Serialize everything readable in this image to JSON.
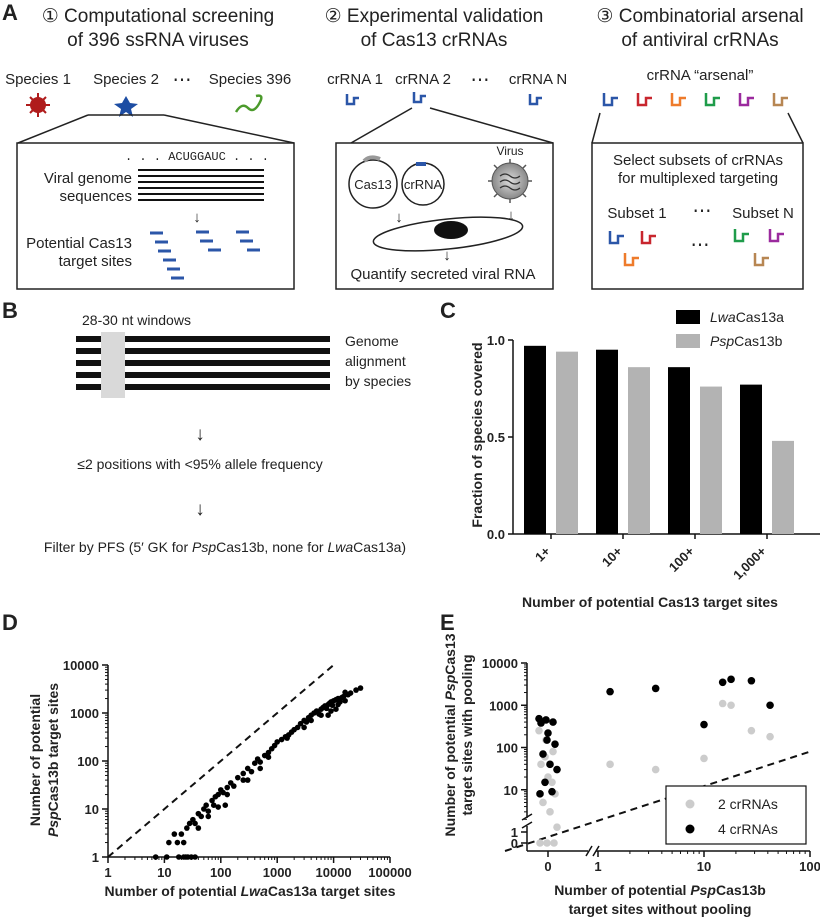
{
  "panel_labels": {
    "a": "A",
    "b": "B",
    "c": "C",
    "d": "D",
    "e": "E"
  },
  "panel_a": {
    "step1": {
      "line1": "① Computational screening",
      "line2": "of 396 ssRNA viruses",
      "species": [
        "Species 1",
        "Species 2",
        "Species 396"
      ],
      "ellipsis": "⋯",
      "seq": ". . . ACUGGAUC . . .",
      "genome_line1": "Viral genome",
      "genome_line2": "sequences",
      "target_line1": "Potential Cas13",
      "target_line2": "target sites",
      "arrow": "↓"
    },
    "step2": {
      "line1": "② Experimental validation",
      "line2": "of Cas13 crRNAs",
      "crrnas": [
        "crRNA 1",
        "crRNA 2",
        "crRNA N"
      ],
      "ellipsis": "⋯",
      "cas13": "Cas13",
      "crrna": "crRNA",
      "virus": "Virus",
      "quantify": "Quantify secreted viral RNA",
      "arrow": "↓"
    },
    "step3": {
      "line1": "③ Combinatorial arsenal",
      "line2": "of antiviral crRNAs",
      "arsenal": "crRNA “arsenal”",
      "select_line1": "Select subsets of crRNAs",
      "select_line2": "for multiplexed targeting",
      "subset1": "Subset 1",
      "subsetN": "Subset N",
      "ellipsis": "⋯",
      "colors": [
        "#2b56a8",
        "#c8262e",
        "#ee7b2b",
        "#1f9c4a",
        "#9b2a9e",
        "#b78652"
      ]
    }
  },
  "panel_b": {
    "windows": "28-30 nt windows",
    "genome_line1": "Genome",
    "genome_line2": "alignment",
    "genome_line3": "by species",
    "criterion": "≤2 positions with <95% allele frequency",
    "filter_a": "Filter by PFS (5′ GK for ",
    "filter_b": "Psp",
    "filter_c": "Cas13b, none for ",
    "filter_d": "Lwa",
    "filter_e": "Cas13a)",
    "arrow": "↓"
  },
  "chart_data": [
    {
      "id": "C",
      "type": "bar",
      "categories": [
        "1+",
        "10+",
        "100+",
        "1,000+"
      ],
      "series": [
        {
          "name": "LwaCas13a",
          "italic": "Lwa",
          "rest": "Cas13a",
          "color": "#000000",
          "values": [
            0.97,
            0.95,
            0.86,
            0.77
          ]
        },
        {
          "name": "PspCas13b",
          "italic": "Psp",
          "rest": "Cas13b",
          "color": "#b3b3b3",
          "values": [
            0.94,
            0.86,
            0.76,
            0.48
          ]
        }
      ],
      "ylim": [
        0,
        1.0
      ],
      "yticks": [
        "0.0",
        "0.5",
        "1.0"
      ],
      "ylabel": "Fraction of species covered",
      "xlabel": "Number of potential Cas13 target sites",
      "legend": "top-right"
    },
    {
      "id": "D",
      "type": "scatter",
      "xscale": "log",
      "yscale": "log",
      "xlim": [
        1,
        100000
      ],
      "ylim": [
        1,
        10000
      ],
      "xticks": [
        "1",
        "10",
        "100",
        "1000",
        "10000",
        "100000"
      ],
      "yticks": [
        "1",
        "10",
        "100",
        "1000",
        "10000"
      ],
      "ylabel_line1": "Number of potential",
      "ylabel_line2a": "Psp",
      "ylabel_line2b": "Cas13b target sites",
      "xlabel_a": "Number of potential ",
      "xlabel_b": "Lwa",
      "xlabel_c": "Cas13a target sites",
      "diagonal": "y = x",
      "points": [
        [
          11,
          1
        ],
        [
          18,
          1
        ],
        [
          22,
          1
        ],
        [
          24,
          1
        ],
        [
          26,
          1
        ],
        [
          30,
          1
        ],
        [
          35,
          1
        ],
        [
          7,
          1
        ],
        [
          12,
          2
        ],
        [
          15,
          3
        ],
        [
          17,
          2
        ],
        [
          20,
          3
        ],
        [
          25,
          4
        ],
        [
          28,
          5
        ],
        [
          32,
          6
        ],
        [
          35,
          5
        ],
        [
          40,
          8
        ],
        [
          45,
          7
        ],
        [
          50,
          10
        ],
        [
          55,
          12
        ],
        [
          60,
          9
        ],
        [
          70,
          15
        ],
        [
          80,
          18
        ],
        [
          90,
          20
        ],
        [
          100,
          25
        ],
        [
          110,
          22
        ],
        [
          130,
          28
        ],
        [
          150,
          35
        ],
        [
          170,
          30
        ],
        [
          200,
          45
        ],
        [
          250,
          55
        ],
        [
          300,
          70
        ],
        [
          350,
          60
        ],
        [
          400,
          90
        ],
        [
          450,
          110
        ],
        [
          500,
          95
        ],
        [
          600,
          130
        ],
        [
          700,
          150
        ],
        [
          800,
          180
        ],
        [
          900,
          210
        ],
        [
          1000,
          250
        ],
        [
          1200,
          280
        ],
        [
          1400,
          320
        ],
        [
          1600,
          350
        ],
        [
          1800,
          400
        ],
        [
          2000,
          450
        ],
        [
          2300,
          500
        ],
        [
          2600,
          600
        ],
        [
          3000,
          700
        ],
        [
          3300,
          650
        ],
        [
          3600,
          800
        ],
        [
          4000,
          900
        ],
        [
          4500,
          1000
        ],
        [
          5000,
          1100
        ],
        [
          5500,
          950
        ],
        [
          6000,
          1200
        ],
        [
          6500,
          1300
        ],
        [
          7000,
          1400
        ],
        [
          7500,
          1250
        ],
        [
          8000,
          1500
        ],
        [
          8500,
          1600
        ],
        [
          9000,
          1700
        ],
        [
          9500,
          1450
        ],
        [
          10000,
          1800
        ],
        [
          11000,
          1900
        ],
        [
          12000,
          2000
        ],
        [
          13000,
          1700
        ],
        [
          14000,
          2100
        ],
        [
          15000,
          2200
        ],
        [
          16000,
          1800
        ],
        [
          18000,
          2400
        ],
        [
          20000,
          2600
        ],
        [
          25000,
          3000
        ],
        [
          30000,
          3300
        ],
        [
          60,
          7
        ],
        [
          130,
          20
        ],
        [
          75,
          12
        ],
        [
          40,
          4
        ],
        [
          250,
          40
        ],
        [
          700,
          120
        ],
        [
          1500,
          300
        ],
        [
          3000,
          500
        ],
        [
          6000,
          900
        ],
        [
          9000,
          1100
        ],
        [
          12000,
          1500
        ],
        [
          16000,
          2700
        ],
        [
          8000,
          900
        ],
        [
          4000,
          700
        ],
        [
          11000,
          1200
        ],
        [
          500,
          70
        ],
        [
          300,
          40
        ],
        [
          90,
          11
        ],
        [
          22,
          2
        ],
        [
          120,
          12
        ]
      ]
    },
    {
      "id": "E",
      "type": "scatter",
      "ylabel_line1a": "Number of potential ",
      "ylabel_line1b": "Psp",
      "ylabel_line1c": "Cas13",
      "ylabel_line2": "target sites with pooling",
      "xlabel_line1a": "Number of potential ",
      "xlabel_line1b": "Psp",
      "xlabel_line1c": "Cas13b",
      "xlabel_line2": "target sites without pooling",
      "xticks": [
        "0",
        "1",
        "10",
        "100"
      ],
      "yticks": [
        "0",
        "1",
        "10",
        "100",
        "1000",
        "10000"
      ],
      "legend": "bottom-right",
      "series": [
        {
          "name": "2 crRNAs",
          "color": "#cccccc",
          "points": [
            [
              0,
              250
            ],
            [
              0,
              150
            ],
            [
              0,
              80
            ],
            [
              0,
              40
            ],
            [
              0,
              20
            ],
            [
              0,
              8
            ],
            [
              0,
              5
            ],
            [
              0,
              3
            ],
            [
              0,
              1.3
            ],
            [
              0,
              60
            ],
            [
              0,
              15
            ],
            [
              0,
              0
            ],
            [
              0,
              0
            ],
            [
              0,
              0
            ],
            [
              1.3,
              40
            ],
            [
              3.5,
              30
            ],
            [
              10,
              55
            ],
            [
              15,
              1100
            ],
            [
              18,
              1000
            ],
            [
              28,
              250
            ],
            [
              42,
              180
            ]
          ]
        },
        {
          "name": "4 crRNAs",
          "color": "#000000",
          "points": [
            [
              0,
              480
            ],
            [
              0,
              450
            ],
            [
              0,
              400
            ],
            [
              0,
              380
            ],
            [
              0,
              220
            ],
            [
              0,
              120
            ],
            [
              0,
              70
            ],
            [
              0,
              40
            ],
            [
              0,
              30
            ],
            [
              0,
              15
            ],
            [
              0,
              9
            ],
            [
              0,
              8
            ],
            [
              0,
              150
            ],
            [
              1.3,
              2100
            ],
            [
              3.5,
              2500
            ],
            [
              10,
              350
            ],
            [
              15,
              3500
            ],
            [
              18,
              4100
            ],
            [
              28,
              3800
            ],
            [
              42,
              1000
            ]
          ]
        }
      ]
    }
  ]
}
